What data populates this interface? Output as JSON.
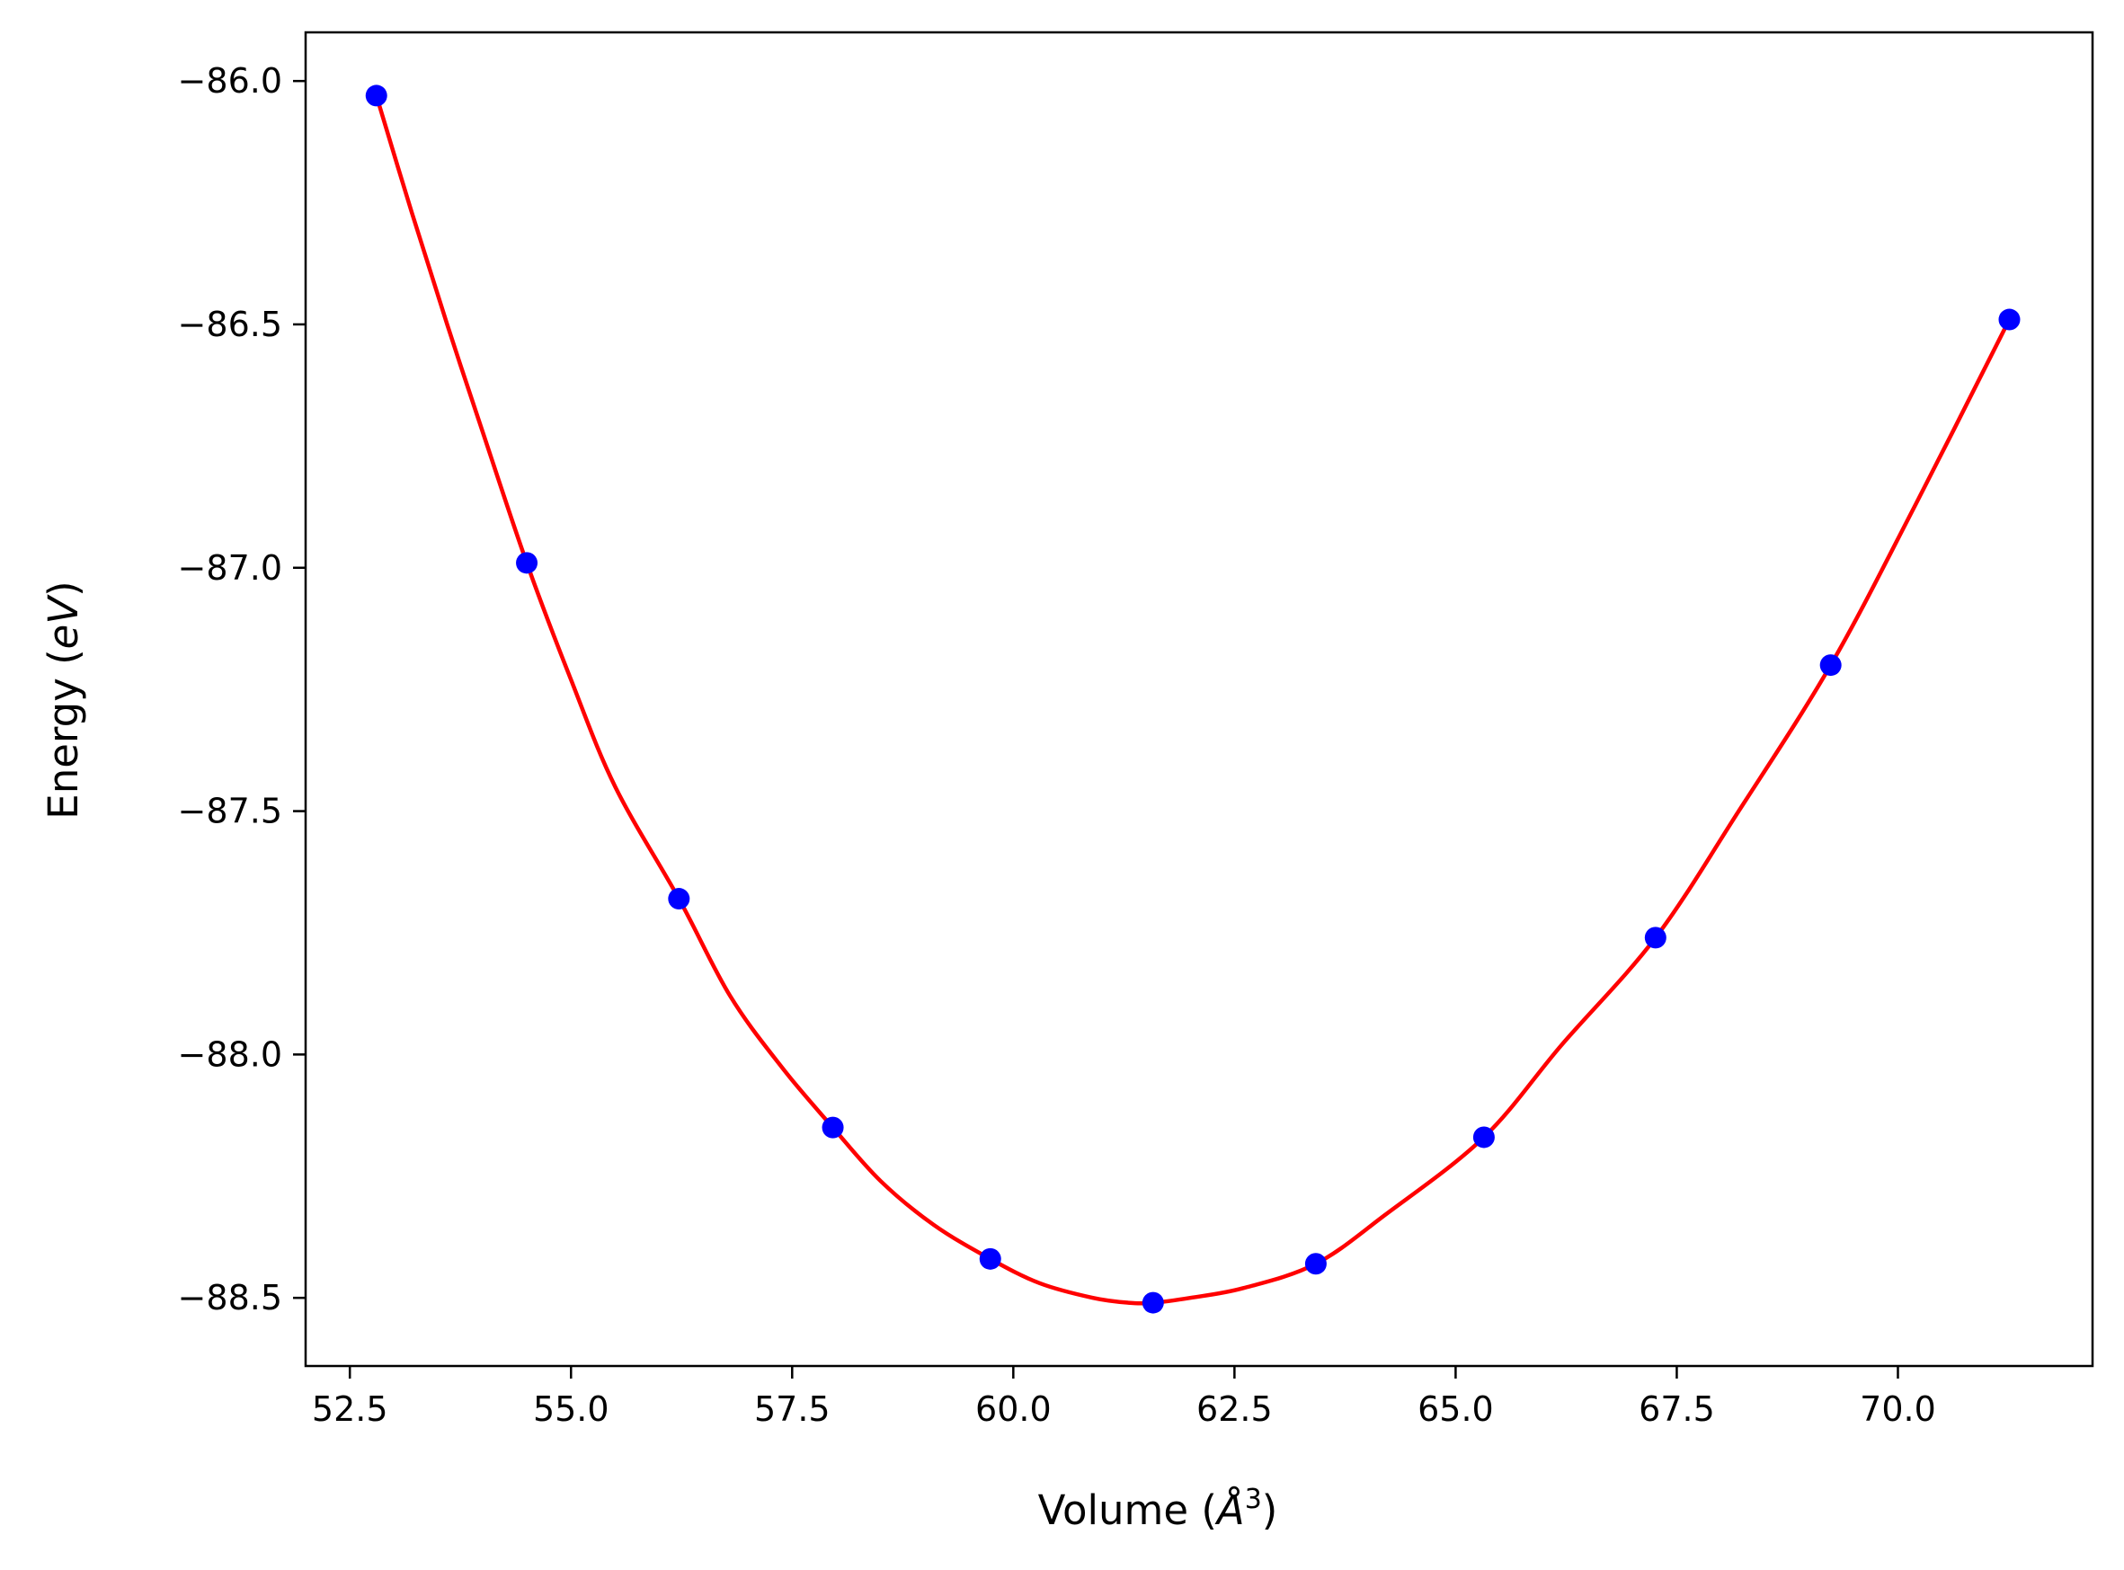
{
  "chart_data": {
    "type": "scatter",
    "xlabel": "Volume (Å³)",
    "xlabel_parts": {
      "prefix": "Volume (",
      "unit_base": "Å",
      "unit_exp": "3",
      "suffix": ")"
    },
    "ylabel": "Energy (eV)",
    "ylabel_parts": {
      "prefix": "Energy (",
      "unit": "eV",
      "suffix": ")"
    },
    "xlim": [
      52.0,
      72.2
    ],
    "ylim": [
      -88.64,
      -85.9
    ],
    "xticks": [
      52.5,
      55.0,
      57.5,
      60.0,
      62.5,
      65.0,
      67.5,
      70.0
    ],
    "xtick_labels": [
      "52.5",
      "55.0",
      "57.5",
      "60.0",
      "62.5",
      "65.0",
      "67.5",
      "70.0"
    ],
    "yticks": [
      -86.0,
      -86.5,
      -87.0,
      -87.5,
      -88.0,
      -88.5
    ],
    "ytick_labels": [
      "−86.0",
      "−86.5",
      "−87.0",
      "−87.5",
      "−88.0",
      "−88.5"
    ],
    "grid": false,
    "series": [
      {
        "kind": "points",
        "color": "#0000ff",
        "x": [
          52.8,
          54.5,
          56.22,
          57.96,
          59.74,
          61.58,
          63.42,
          65.32,
          67.26,
          69.24,
          71.26
        ],
        "y": [
          -86.03,
          -86.99,
          -87.68,
          -88.15,
          -88.42,
          -88.51,
          -88.43,
          -88.17,
          -87.76,
          -87.2,
          -86.49
        ]
      },
      {
        "kind": "fit-curve",
        "color": "#ff0000",
        "x": [
          52.8,
          53.2,
          53.6,
          54.0,
          54.5,
          55.0,
          55.5,
          56.22,
          56.8,
          57.4,
          57.96,
          58.5,
          59.1,
          59.74,
          60.3,
          60.9,
          61.3,
          61.58,
          62.0,
          62.6,
          63.42,
          64.2,
          65.32,
          66.2,
          67.26,
          68.2,
          69.24,
          70.2,
          71.26
        ],
        "y": [
          -86.03,
          -86.27,
          -86.5,
          -86.72,
          -86.99,
          -87.23,
          -87.45,
          -87.68,
          -87.88,
          -88.03,
          -88.15,
          -88.26,
          -88.35,
          -88.42,
          -88.47,
          -88.5,
          -88.51,
          -88.51,
          -88.5,
          -88.48,
          -88.43,
          -88.33,
          -88.17,
          -87.98,
          -87.76,
          -87.5,
          -87.2,
          -86.87,
          -86.49
        ]
      }
    ]
  }
}
